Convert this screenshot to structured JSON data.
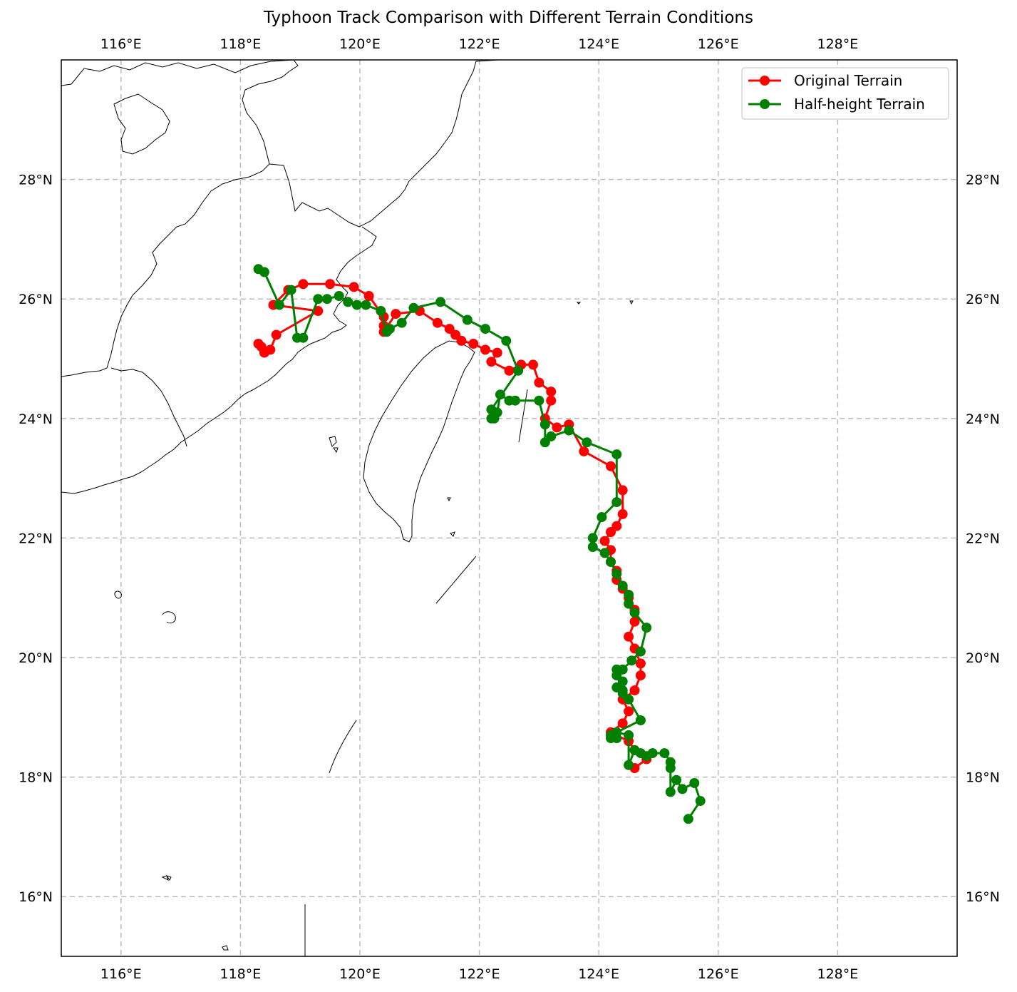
{
  "title": "Typhoon Track Comparison with Different Terrain Conditions",
  "chart_data": {
    "type": "map-track",
    "title": "Typhoon Track Comparison with Different Terrain Conditions",
    "lon_range": [
      115,
      130
    ],
    "lat_range": [
      15,
      30
    ],
    "grid": true,
    "legend_position": "top-right",
    "x_ticks": [
      116,
      118,
      120,
      122,
      124,
      126,
      128
    ],
    "y_ticks": [
      16,
      18,
      20,
      22,
      24,
      26,
      28
    ],
    "x_tick_labels": [
      "116°E",
      "118°E",
      "120°E",
      "122°E",
      "124°E",
      "126°E",
      "128°E"
    ],
    "y_tick_labels": [
      "16°N",
      "18°N",
      "20°N",
      "22°N",
      "24°N",
      "26°N",
      "28°N"
    ],
    "series": [
      {
        "name": "Original Terrain",
        "color": "#ff0000",
        "points": [
          [
            124.6,
            18.15
          ],
          [
            124.8,
            18.3
          ],
          [
            124.6,
            18.45
          ],
          [
            124.5,
            18.6
          ],
          [
            124.2,
            18.75
          ],
          [
            124.4,
            18.9
          ],
          [
            124.5,
            19.1
          ],
          [
            124.4,
            19.3
          ],
          [
            124.6,
            19.45
          ],
          [
            124.7,
            19.7
          ],
          [
            124.7,
            19.9
          ],
          [
            124.6,
            20.15
          ],
          [
            124.5,
            20.35
          ],
          [
            124.6,
            20.6
          ],
          [
            124.6,
            20.8
          ],
          [
            124.5,
            21.0
          ],
          [
            124.4,
            21.15
          ],
          [
            124.3,
            21.3
          ],
          [
            124.3,
            21.45
          ],
          [
            124.2,
            21.6
          ],
          [
            124.2,
            21.8
          ],
          [
            124.1,
            21.95
          ],
          [
            124.2,
            22.1
          ],
          [
            124.3,
            22.2
          ],
          [
            124.4,
            22.4
          ],
          [
            124.4,
            22.8
          ],
          [
            124.2,
            23.2
          ],
          [
            123.75,
            23.45
          ],
          [
            123.5,
            23.9
          ],
          [
            123.3,
            23.85
          ],
          [
            123.1,
            24.0
          ],
          [
            123.2,
            24.3
          ],
          [
            123.2,
            24.45
          ],
          [
            123.0,
            24.6
          ],
          [
            122.9,
            24.9
          ],
          [
            122.7,
            24.9
          ],
          [
            122.5,
            24.8
          ],
          [
            122.2,
            24.95
          ],
          [
            122.3,
            25.1
          ],
          [
            122.1,
            25.15
          ],
          [
            121.9,
            25.25
          ],
          [
            121.7,
            25.3
          ],
          [
            121.6,
            25.4
          ],
          [
            121.5,
            25.5
          ],
          [
            121.3,
            25.6
          ],
          [
            121.0,
            25.8
          ],
          [
            120.6,
            25.75
          ],
          [
            120.4,
            25.45
          ],
          [
            120.4,
            25.55
          ],
          [
            120.4,
            25.7
          ],
          [
            120.15,
            26.05
          ],
          [
            119.9,
            26.2
          ],
          [
            119.5,
            26.25
          ],
          [
            119.05,
            26.25
          ],
          [
            118.8,
            26.15
          ],
          [
            118.55,
            25.9
          ],
          [
            119.3,
            25.8
          ],
          [
            118.6,
            25.4
          ],
          [
            118.5,
            25.15
          ],
          [
            118.4,
            25.1
          ],
          [
            118.35,
            25.2
          ],
          [
            118.3,
            25.25
          ]
        ]
      },
      {
        "name": "Half-height Terrain",
        "color": "#008000",
        "points": [
          [
            125.5,
            17.3
          ],
          [
            125.7,
            17.6
          ],
          [
            125.6,
            17.9
          ],
          [
            125.4,
            17.8
          ],
          [
            125.3,
            17.95
          ],
          [
            125.2,
            17.75
          ],
          [
            125.2,
            18.15
          ],
          [
            125.2,
            18.25
          ],
          [
            125.1,
            18.4
          ],
          [
            124.9,
            18.4
          ],
          [
            124.8,
            18.35
          ],
          [
            124.7,
            18.4
          ],
          [
            124.6,
            18.45
          ],
          [
            124.5,
            18.2
          ],
          [
            124.5,
            18.7
          ],
          [
            124.3,
            18.75
          ],
          [
            124.3,
            18.65
          ],
          [
            124.2,
            18.65
          ],
          [
            124.2,
            18.7
          ],
          [
            124.7,
            18.95
          ],
          [
            124.5,
            19.3
          ],
          [
            124.4,
            19.4
          ],
          [
            124.4,
            19.45
          ],
          [
            124.3,
            19.5
          ],
          [
            124.4,
            19.6
          ],
          [
            124.3,
            19.7
          ],
          [
            124.3,
            19.8
          ],
          [
            124.4,
            19.8
          ],
          [
            124.55,
            19.95
          ],
          [
            124.7,
            20.1
          ],
          [
            124.8,
            20.5
          ],
          [
            124.6,
            20.75
          ],
          [
            124.5,
            20.9
          ],
          [
            124.5,
            21.05
          ],
          [
            124.4,
            21.2
          ],
          [
            124.3,
            21.4
          ],
          [
            124.2,
            21.6
          ],
          [
            124.1,
            21.75
          ],
          [
            123.9,
            21.85
          ],
          [
            123.9,
            22.0
          ],
          [
            124.05,
            22.35
          ],
          [
            124.3,
            22.6
          ],
          [
            124.3,
            23.4
          ],
          [
            123.8,
            23.6
          ],
          [
            123.5,
            23.8
          ],
          [
            123.2,
            23.7
          ],
          [
            123.1,
            23.6
          ],
          [
            123.1,
            23.9
          ],
          [
            123.0,
            24.3
          ],
          [
            122.6,
            24.3
          ],
          [
            122.5,
            24.3
          ],
          [
            122.35,
            24.4
          ],
          [
            122.3,
            24.1
          ],
          [
            122.25,
            24.0
          ],
          [
            122.2,
            24.0
          ],
          [
            122.2,
            24.15
          ],
          [
            122.65,
            24.8
          ],
          [
            122.45,
            25.3
          ],
          [
            122.1,
            25.5
          ],
          [
            121.8,
            25.65
          ],
          [
            121.35,
            25.95
          ],
          [
            120.9,
            25.85
          ],
          [
            120.7,
            25.6
          ],
          [
            120.5,
            25.5
          ],
          [
            120.45,
            25.45
          ],
          [
            120.35,
            25.8
          ],
          [
            120.1,
            25.9
          ],
          [
            119.95,
            25.9
          ],
          [
            119.8,
            25.95
          ],
          [
            119.65,
            26.05
          ],
          [
            119.45,
            26.0
          ],
          [
            119.3,
            26.0
          ],
          [
            119.05,
            25.35
          ],
          [
            118.95,
            25.35
          ],
          [
            118.85,
            26.15
          ],
          [
            118.65,
            25.9
          ],
          [
            118.4,
            26.45
          ],
          [
            118.3,
            26.5
          ]
        ]
      }
    ]
  }
}
